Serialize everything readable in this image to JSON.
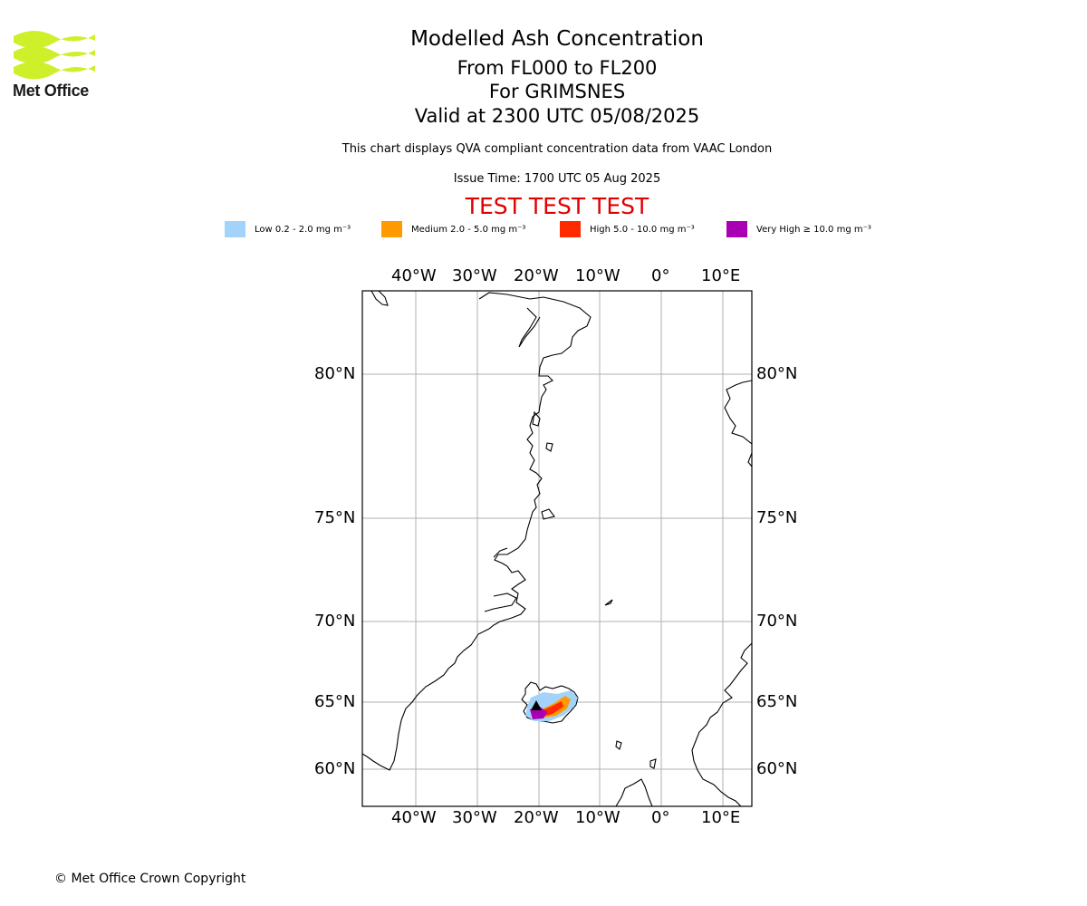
{
  "logo": {
    "text": "Met Office",
    "brand_color": "#cef02a"
  },
  "titles": {
    "main": "Modelled Ash Concentration",
    "levels": "From FL000 to FL200",
    "volcano": "For GRIMSNES",
    "valid": "Valid at 2300 UTC 05/08/2025",
    "info": "This chart displays QVA compliant concentration data from VAAC London",
    "issue": "Issue Time: 1700 UTC 05 Aug 2025",
    "test": "TEST TEST TEST"
  },
  "legend": [
    {
      "label": "Low 0.2 - 2.0 mg m⁻³",
      "color": "#a3d3fa"
    },
    {
      "label": "Medium 2.0 - 5.0 mg m⁻³",
      "color": "#ff9a00"
    },
    {
      "label": "High 5.0 - 10.0 mg m⁻³",
      "color": "#ff2a00"
    },
    {
      "label": "Very High ≥ 10.0 mg m⁻³",
      "color": "#aa00b4"
    }
  ],
  "map": {
    "lon_labels": [
      "40°W",
      "30°W",
      "20°W",
      "10°W",
      "0°",
      "10°E"
    ],
    "lat_labels": [
      "80°N",
      "75°N",
      "70°N",
      "65°N",
      "60°N"
    ],
    "volcano_marker": "black-triangle"
  },
  "footer": {
    "copyright": "© Met Office Crown Copyright"
  }
}
